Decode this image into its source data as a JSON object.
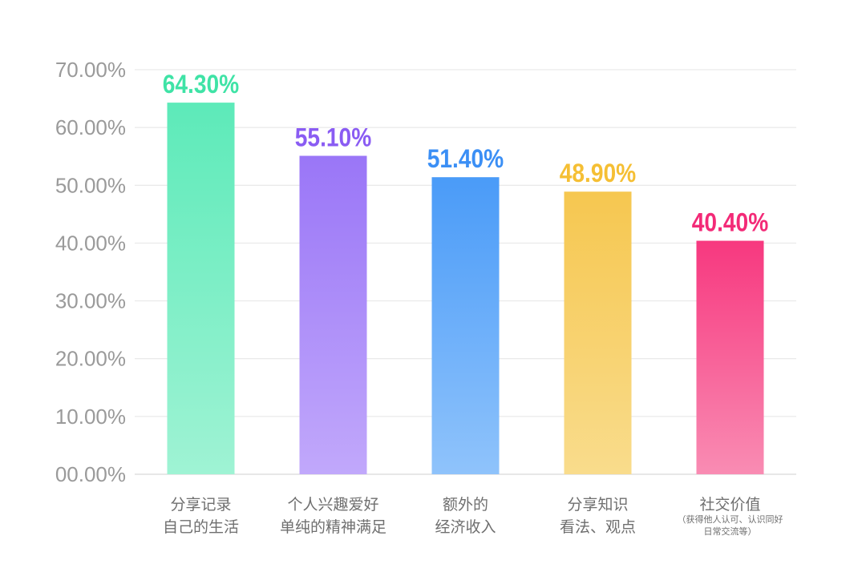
{
  "chart_data": {
    "type": "bar",
    "title": "",
    "xlabel": "",
    "ylabel": "",
    "ylim": [
      0,
      70
    ],
    "grid": true,
    "legend": "none",
    "y_ticks": [
      "00.00%",
      "10.00%",
      "20.00%",
      "30.00%",
      "40.00%",
      "50.00%",
      "60.00%",
      "70.00%"
    ],
    "categories": [
      {
        "lines": [
          "分享记录",
          "自己的生活"
        ],
        "note": []
      },
      {
        "lines": [
          "个人兴趣爱好",
          "单纯的精神满足"
        ],
        "note": []
      },
      {
        "lines": [
          "额外的",
          "经济收入"
        ],
        "note": []
      },
      {
        "lines": [
          "分享知识",
          "看法、观点"
        ],
        "note": []
      },
      {
        "lines": [
          "社交价值"
        ],
        "note": [
          "（获得他人认可、认识同好",
          "日常交流等）"
        ]
      }
    ],
    "values": [
      64.3,
      55.1,
      51.4,
      48.9,
      40.4
    ],
    "value_labels": [
      "64.30%",
      "55.10%",
      "51.40%",
      "48.90%",
      "40.40%"
    ],
    "colors": [
      {
        "top": "#5deab9",
        "bottom": "#9ff3d4"
      },
      {
        "top": "#9a76f7",
        "bottom": "#c1a8fb"
      },
      {
        "top": "#4a9bf8",
        "bottom": "#8fc3fb"
      },
      {
        "top": "#f6c750",
        "bottom": "#f9dc8c"
      },
      {
        "top": "#f7387f",
        "bottom": "#f98cb3"
      }
    ],
    "label_colors": [
      "#3fe3a6",
      "#8a5cf3",
      "#3b8ff5",
      "#f5bf34",
      "#f32a77"
    ]
  }
}
